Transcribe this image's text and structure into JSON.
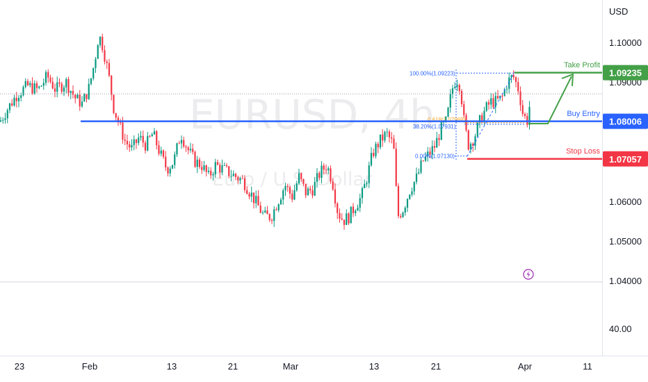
{
  "chart_data": {
    "type": "candlestick",
    "symbol_watermark": "EURUSD, 4h",
    "description_watermark": "Euro / U.S. Dollar",
    "currency_label": "USD",
    "y_ticks": [
      "1.10000",
      "1.09000",
      "1.06000",
      "1.05000",
      "1.04000"
    ],
    "ylim": [
      1.04,
      1.105
    ],
    "x_ticks": [
      "23",
      "Feb",
      "13",
      "21",
      "Mar",
      "13",
      "21",
      "Apr",
      "11"
    ],
    "lower_pane_tick": "40.00",
    "price_path": [
      [
        0,
        1.08
      ],
      [
        10,
        1.083
      ],
      [
        25,
        1.087
      ],
      [
        40,
        1.089
      ],
      [
        55,
        1.088
      ],
      [
        68,
        1.0915
      ],
      [
        80,
        1.088
      ],
      [
        95,
        1.09
      ],
      [
        108,
        1.086
      ],
      [
        118,
        1.0845
      ],
      [
        128,
        1.0885
      ],
      [
        136,
        1.095
      ],
      [
        142,
        1.102
      ],
      [
        148,
        1.099
      ],
      [
        156,
        1.092
      ],
      [
        164,
        1.083
      ],
      [
        172,
        1.079
      ],
      [
        180,
        1.075
      ],
      [
        190,
        1.073
      ],
      [
        200,
        1.076
      ],
      [
        210,
        1.074
      ],
      [
        220,
        1.077
      ],
      [
        230,
        1.072
      ],
      [
        240,
        1.068
      ],
      [
        250,
        1.07
      ],
      [
        260,
        1.077
      ],
      [
        270,
        1.073
      ],
      [
        280,
        1.07
      ],
      [
        290,
        1.069
      ],
      [
        300,
        1.066
      ],
      [
        310,
        1.069
      ],
      [
        320,
        1.068
      ],
      [
        330,
        1.067
      ],
      [
        340,
        1.066
      ],
      [
        350,
        1.065
      ],
      [
        360,
        1.062
      ],
      [
        370,
        1.059
      ],
      [
        380,
        1.056
      ],
      [
        390,
        1.056
      ],
      [
        400,
        1.06
      ],
      [
        410,
        1.064
      ],
      [
        420,
        1.061
      ],
      [
        430,
        1.066
      ],
      [
        440,
        1.062
      ],
      [
        450,
        1.063
      ],
      [
        460,
        1.067
      ],
      [
        470,
        1.069
      ],
      [
        478,
        1.065
      ],
      [
        486,
        1.057
      ],
      [
        494,
        1.055
      ],
      [
        502,
        1.056
      ],
      [
        512,
        1.059
      ],
      [
        520,
        1.061
      ],
      [
        528,
        1.066
      ],
      [
        536,
        1.072
      ],
      [
        546,
        1.075
      ],
      [
        556,
        1.077
      ],
      [
        566,
        1.074
      ],
      [
        572,
        1.056
      ],
      [
        580,
        1.058
      ],
      [
        590,
        1.063
      ],
      [
        600,
        1.066
      ],
      [
        608,
        1.07
      ],
      [
        618,
        1.072
      ],
      [
        626,
        1.074
      ],
      [
        634,
        1.078
      ],
      [
        642,
        1.08
      ],
      [
        650,
        1.088
      ],
      [
        656,
        1.091
      ],
      [
        662,
        1.089
      ],
      [
        668,
        1.079
      ],
      [
        674,
        1.074
      ],
      [
        682,
        1.076
      ],
      [
        690,
        1.08
      ],
      [
        698,
        1.083
      ],
      [
        706,
        1.085
      ],
      [
        714,
        1.085
      ],
      [
        722,
        1.086
      ],
      [
        730,
        1.09
      ],
      [
        738,
        1.0915
      ],
      [
        746,
        1.088
      ],
      [
        752,
        1.082
      ],
      [
        758,
        1.08
      ],
      [
        764,
        1.0865
      ]
    ],
    "current_price_dotted": 1.087,
    "buy_entry_line": 1.08006,
    "stop_loss_line": 1.07057,
    "take_profit_line": 1.09235,
    "fibonacci": {
      "levels": [
        {
          "label": "100.00%(1.09223)",
          "price": 1.09223,
          "color": "#2962ff"
        },
        {
          "label": "0.618(1.07969)",
          "price": 1.07969,
          "color": "#f5a623"
        },
        {
          "label": "38.20%(1.07931)",
          "price": 1.07931,
          "color": "#2962ff"
        },
        {
          "label": "0.00%(1.07130)",
          "price": 1.0713,
          "color": "#2962ff"
        }
      ]
    },
    "annotations": [
      {
        "text": "Take Profit",
        "color": "#43a047"
      },
      {
        "text": "Buy Entry",
        "color": "#2962ff"
      },
      {
        "text": "Stop Loss",
        "color": "#f23645"
      }
    ],
    "price_badges": [
      {
        "value": "1.09235",
        "color": "#43a047"
      },
      {
        "value": "1.08006",
        "color": "#2962ff"
      },
      {
        "value": "1.07057",
        "color": "#f23645"
      }
    ],
    "colors": {
      "up": "#089981",
      "down": "#f23645",
      "grid": "#e0e3eb"
    }
  }
}
